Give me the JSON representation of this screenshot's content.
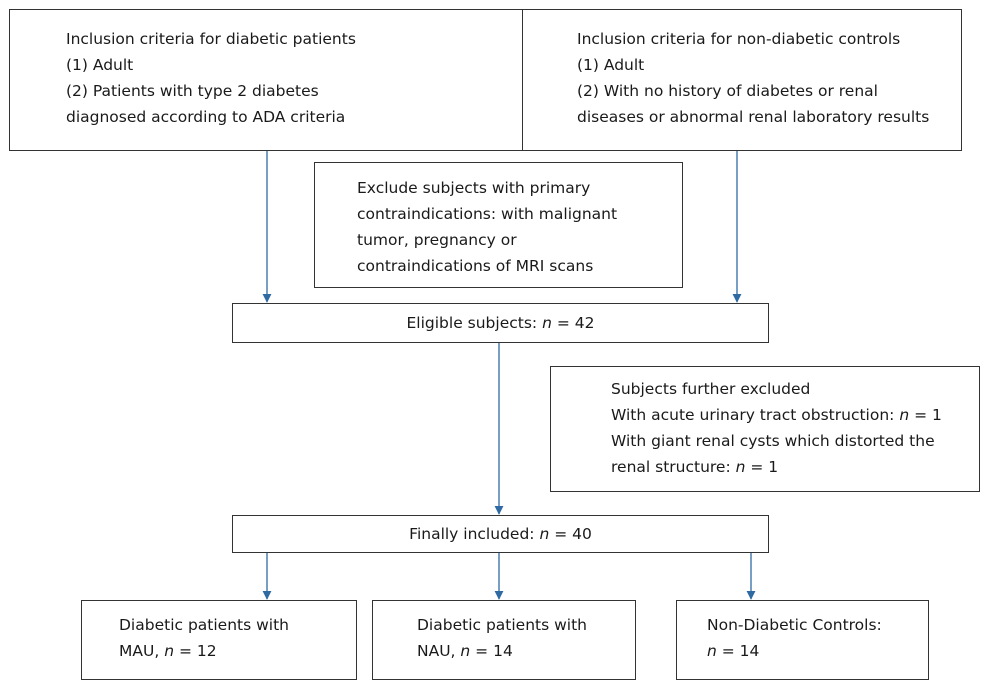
{
  "boxes": {
    "diabetic_inclusion": {
      "lines": [
        "Inclusion criteria for diabetic patients",
        "(1) Adult",
        "(2) Patients with type 2 diabetes",
        "diagnosed according to ADA criteria"
      ]
    },
    "control_inclusion": {
      "lines": [
        "Inclusion criteria for non-diabetic controls",
        "(1) Adult",
        "(2) With no history of diabetes or renal",
        "diseases or abnormal renal laboratory results"
      ]
    },
    "primary_exclusion": {
      "lines": [
        "Exclude subjects with primary",
        "contraindications: with malignant",
        "tumor, pregnancy or",
        "contraindications of MRI scans"
      ]
    },
    "eligible": {
      "text": "Eligible subjects: ",
      "n_label": "n",
      "eq": " = ",
      "value": "42"
    },
    "further_exclusion": {
      "title": "Subjects further excluded",
      "item1_text": "With acute urinary tract obstruction: ",
      "item1_n": "n",
      "item1_eq": " = ",
      "item1_value": "1",
      "item2_line1": "With giant renal cysts which distorted the",
      "item2_text": "renal structure: ",
      "item2_n": "n",
      "item2_eq": " = ",
      "item2_value": "1"
    },
    "final": {
      "text": "Finally included: ",
      "n_label": "n",
      "eq": " = ",
      "value": "40"
    },
    "mau": {
      "line1": "Diabetic patients with",
      "prefix": "MAU, ",
      "n_label": "n",
      "eq": " = ",
      "value": "12"
    },
    "nau": {
      "line1": "Diabetic patients with",
      "prefix": "NAU, ",
      "n_label": "n",
      "eq": " = ",
      "value": "14"
    },
    "controls": {
      "line1": "Non-Diabetic Controls:",
      "prefix": "",
      "n_label": "n",
      "eq": " = ",
      "value": "14"
    }
  },
  "colors": {
    "arrow": "#2f6aa3",
    "border": "#333333"
  }
}
